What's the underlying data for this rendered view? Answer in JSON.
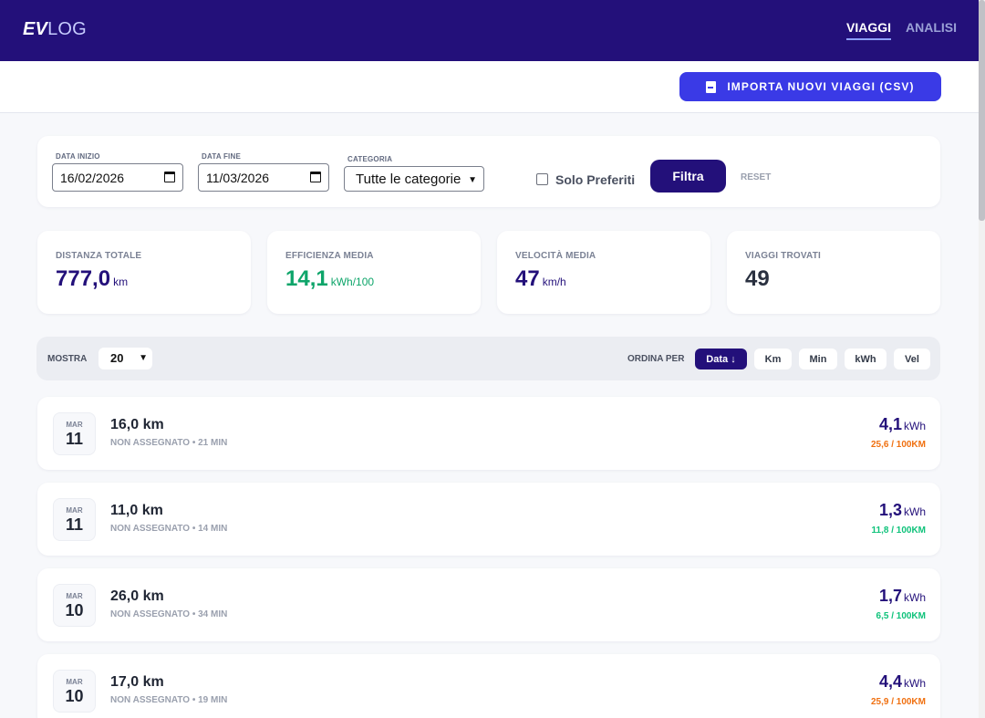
{
  "app": {
    "logo_ev": "EV",
    "logo_log": "LOG"
  },
  "nav": {
    "tab_viaggi": "VIAGGI",
    "tab_analisi": "ANALISI"
  },
  "toolbar": {
    "import_label": "IMPORTA NUOVI VIAGGI (CSV)"
  },
  "filters": {
    "start_label": "DATA INIZIO",
    "start_value": "16/02/2026",
    "end_label": "DATA FINE",
    "end_value": "11/03/2026",
    "category_label": "CATEGORIA",
    "category_value": "Tutte le categorie",
    "favorites_label": "Solo Preferiti",
    "filter_button": "Filtra",
    "reset_link": "RESET"
  },
  "stats": [
    {
      "label": "DISTANZA TOTALE",
      "value": "777,0",
      "unit": "km"
    },
    {
      "label": "EFFICIENZA MEDIA",
      "value": "14,1",
      "unit": "kWh/100"
    },
    {
      "label": "VELOCITÀ MEDIA",
      "value": "47",
      "unit": "km/h"
    },
    {
      "label": "VIAGGI TROVATI",
      "value": "49",
      "unit": ""
    }
  ],
  "listbar": {
    "mostra_label": "MOSTRA",
    "mostra_value": "20",
    "ordina_label": "ORDINA PER",
    "sort_options": [
      "Data",
      "Km",
      "Min",
      "kWh",
      "Vel"
    ],
    "active_sort_arrow": "↓"
  },
  "trips": [
    {
      "month": "MAR",
      "day": "11",
      "distance": "16,0 km",
      "meta": "NON ASSEGNATO • 21 MIN",
      "energy": "4,1",
      "energy_unit": "kWh",
      "efficiency": "25,6 / 100KM"
    },
    {
      "month": "MAR",
      "day": "11",
      "distance": "11,0 km",
      "meta": "NON ASSEGNATO • 14 MIN",
      "energy": "1,3",
      "energy_unit": "kWh",
      "efficiency": "11,8 / 100KM"
    },
    {
      "month": "MAR",
      "day": "10",
      "distance": "26,0 km",
      "meta": "NON ASSEGNATO • 34 MIN",
      "energy": "1,7",
      "energy_unit": "kWh",
      "efficiency": "6,5 / 100KM"
    },
    {
      "month": "MAR",
      "day": "10",
      "distance": "17,0 km",
      "meta": "NON ASSEGNATO • 19 MIN",
      "energy": "4,4",
      "energy_unit": "kWh",
      "efficiency": "25,9 / 100KM"
    }
  ],
  "colors": {
    "brand": "#23107a",
    "accent": "#3a3ae6",
    "eff_high": "#f07010",
    "eff_low": "#0ec27a",
    "eff_avg": "#0ea56a"
  }
}
